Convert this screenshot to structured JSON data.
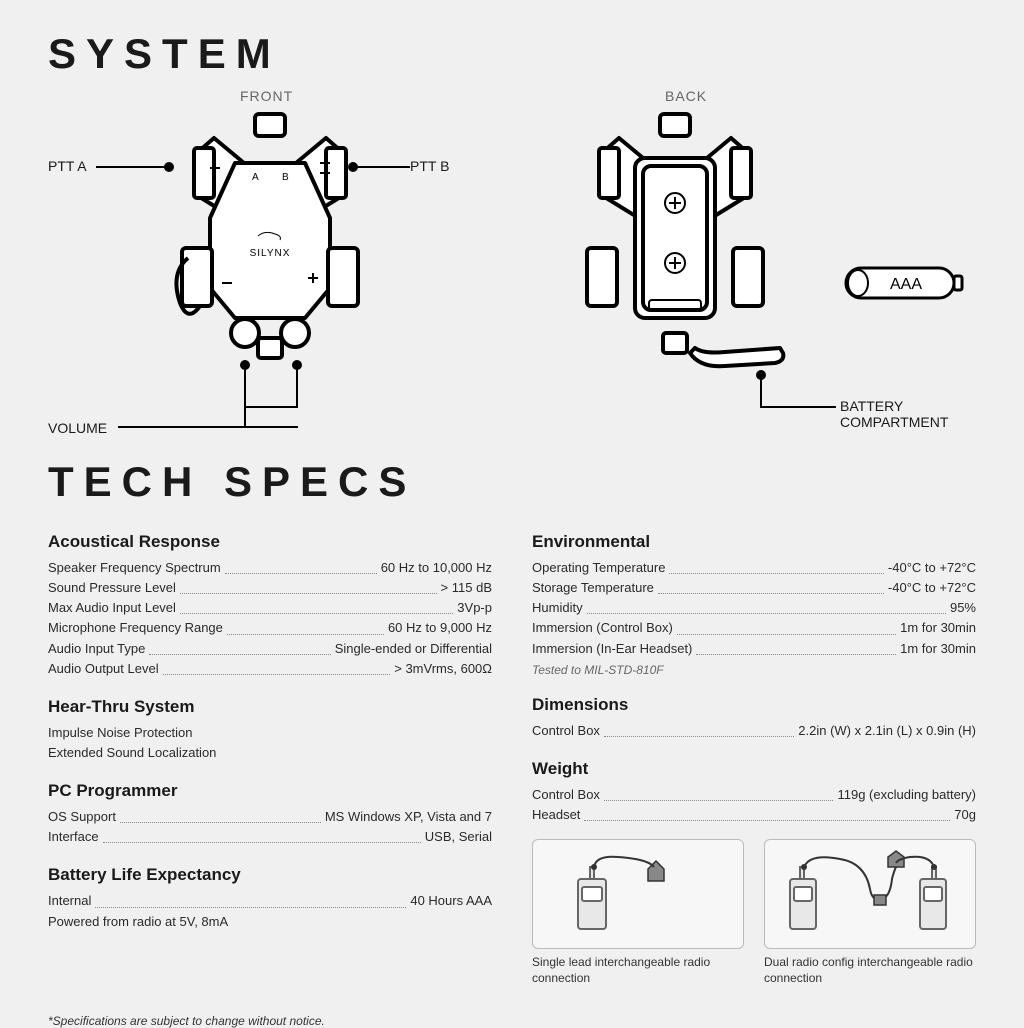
{
  "title_system": "SYSTEM",
  "title_specs": "TECH SPECS",
  "diagram": {
    "front_label": "FRONT",
    "back_label": "BACK",
    "ptt_a": "PTT A",
    "ptt_b": "PTT B",
    "volume": "VOLUME",
    "battery_compartment": "BATTERY\nCOMPARTMENT",
    "aaa": "AAA",
    "brand": "SILYNX",
    "ab_a": "A",
    "ab_b": "B"
  },
  "specs": {
    "acoustical": {
      "title": "Acoustical Response",
      "rows": [
        {
          "label": "Speaker Frequency Spectrum",
          "value": "60 Hz to 10,000 Hz"
        },
        {
          "label": "Sound Pressure Level",
          "value": "> 115 dB"
        },
        {
          "label": "Max Audio Input Level",
          "value": "3Vp-p"
        },
        {
          "label": "Microphone Frequency Range",
          "value": "60 Hz to 9,000 Hz"
        },
        {
          "label": "Audio Input Type",
          "value": "Single-ended or Differential"
        },
        {
          "label": "Audio Output Level",
          "value": "> 3mVrms, 600Ω"
        }
      ]
    },
    "hearthru": {
      "title": "Hear-Thru System",
      "lines": [
        "Impulse Noise Protection",
        "Extended Sound Localization"
      ]
    },
    "pc": {
      "title": "PC Programmer",
      "rows": [
        {
          "label": "OS Support",
          "value": "MS Windows XP, Vista and 7"
        },
        {
          "label": "Interface",
          "value": "USB, Serial"
        }
      ]
    },
    "battery": {
      "title": "Battery Life Expectancy",
      "rows": [
        {
          "label": "Internal",
          "value": "40 Hours AAA"
        }
      ],
      "extra": "Powered from radio at 5V, 8mA"
    },
    "env": {
      "title": "Environmental",
      "rows": [
        {
          "label": "Operating Temperature",
          "value": "-40°C to +72°C"
        },
        {
          "label": "Storage Temperature",
          "value": "-40°C to +72°C"
        },
        {
          "label": "Humidity",
          "value": "95%"
        },
        {
          "label": "Immersion (Control Box)",
          "value": "1m for 30min"
        },
        {
          "label": "Immersion (In-Ear Headset)",
          "value": "1m for 30min"
        }
      ],
      "note": "Tested to MIL-STD-810F"
    },
    "dims": {
      "title": "Dimensions",
      "rows": [
        {
          "label": "Control Box",
          "value": "2.2in (W) x 2.1in (L) x 0.9in (H)"
        }
      ]
    },
    "weight": {
      "title": "Weight",
      "rows": [
        {
          "label": "Control Box",
          "value": "119g (excluding battery)"
        },
        {
          "label": "Headset",
          "value": "70g"
        }
      ]
    }
  },
  "configs": {
    "single": "Single lead interchangeable radio connection",
    "dual": "Dual radio config interchangeable radio connection"
  },
  "footnote": "*Specifications are subject to change without notice."
}
